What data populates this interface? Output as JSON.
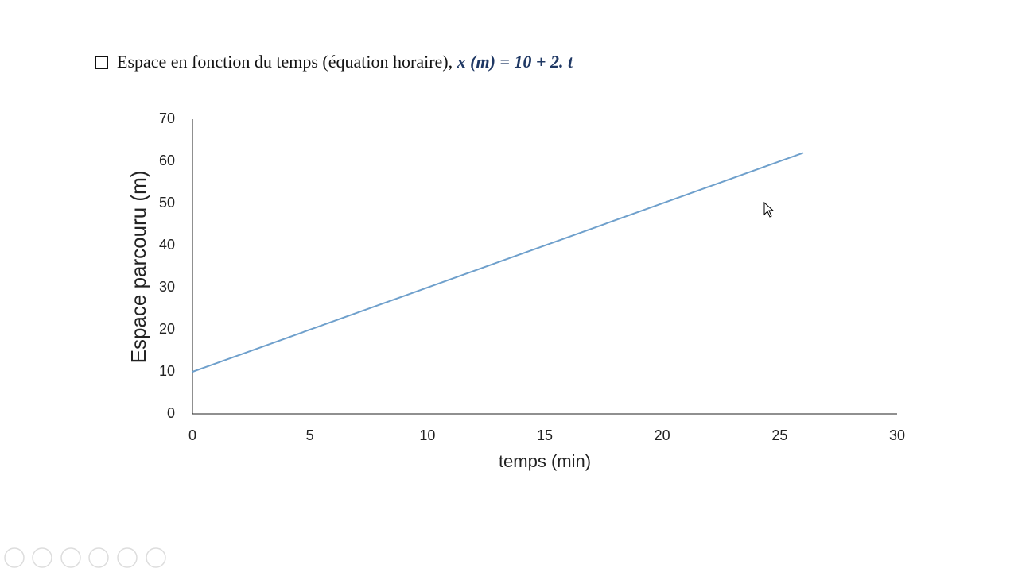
{
  "heading": {
    "text": "Espace en fonction du temps (équation horaire),",
    "equation": "x (m)  = 10 + 2. t"
  },
  "chart_data": {
    "type": "line",
    "x_label": "temps (min)",
    "y_label": "Espace parcouru  (m)",
    "x": [
      0,
      26
    ],
    "values": [
      10,
      62
    ],
    "color": "#6fa0cc",
    "xlim": [
      0,
      30
    ],
    "xticks": [
      0,
      5,
      10,
      15,
      20,
      25,
      30
    ],
    "ylim": [
      0,
      70
    ],
    "yticks": [
      0,
      10,
      20,
      30,
      40,
      50,
      60,
      70
    ],
    "grid": false
  }
}
